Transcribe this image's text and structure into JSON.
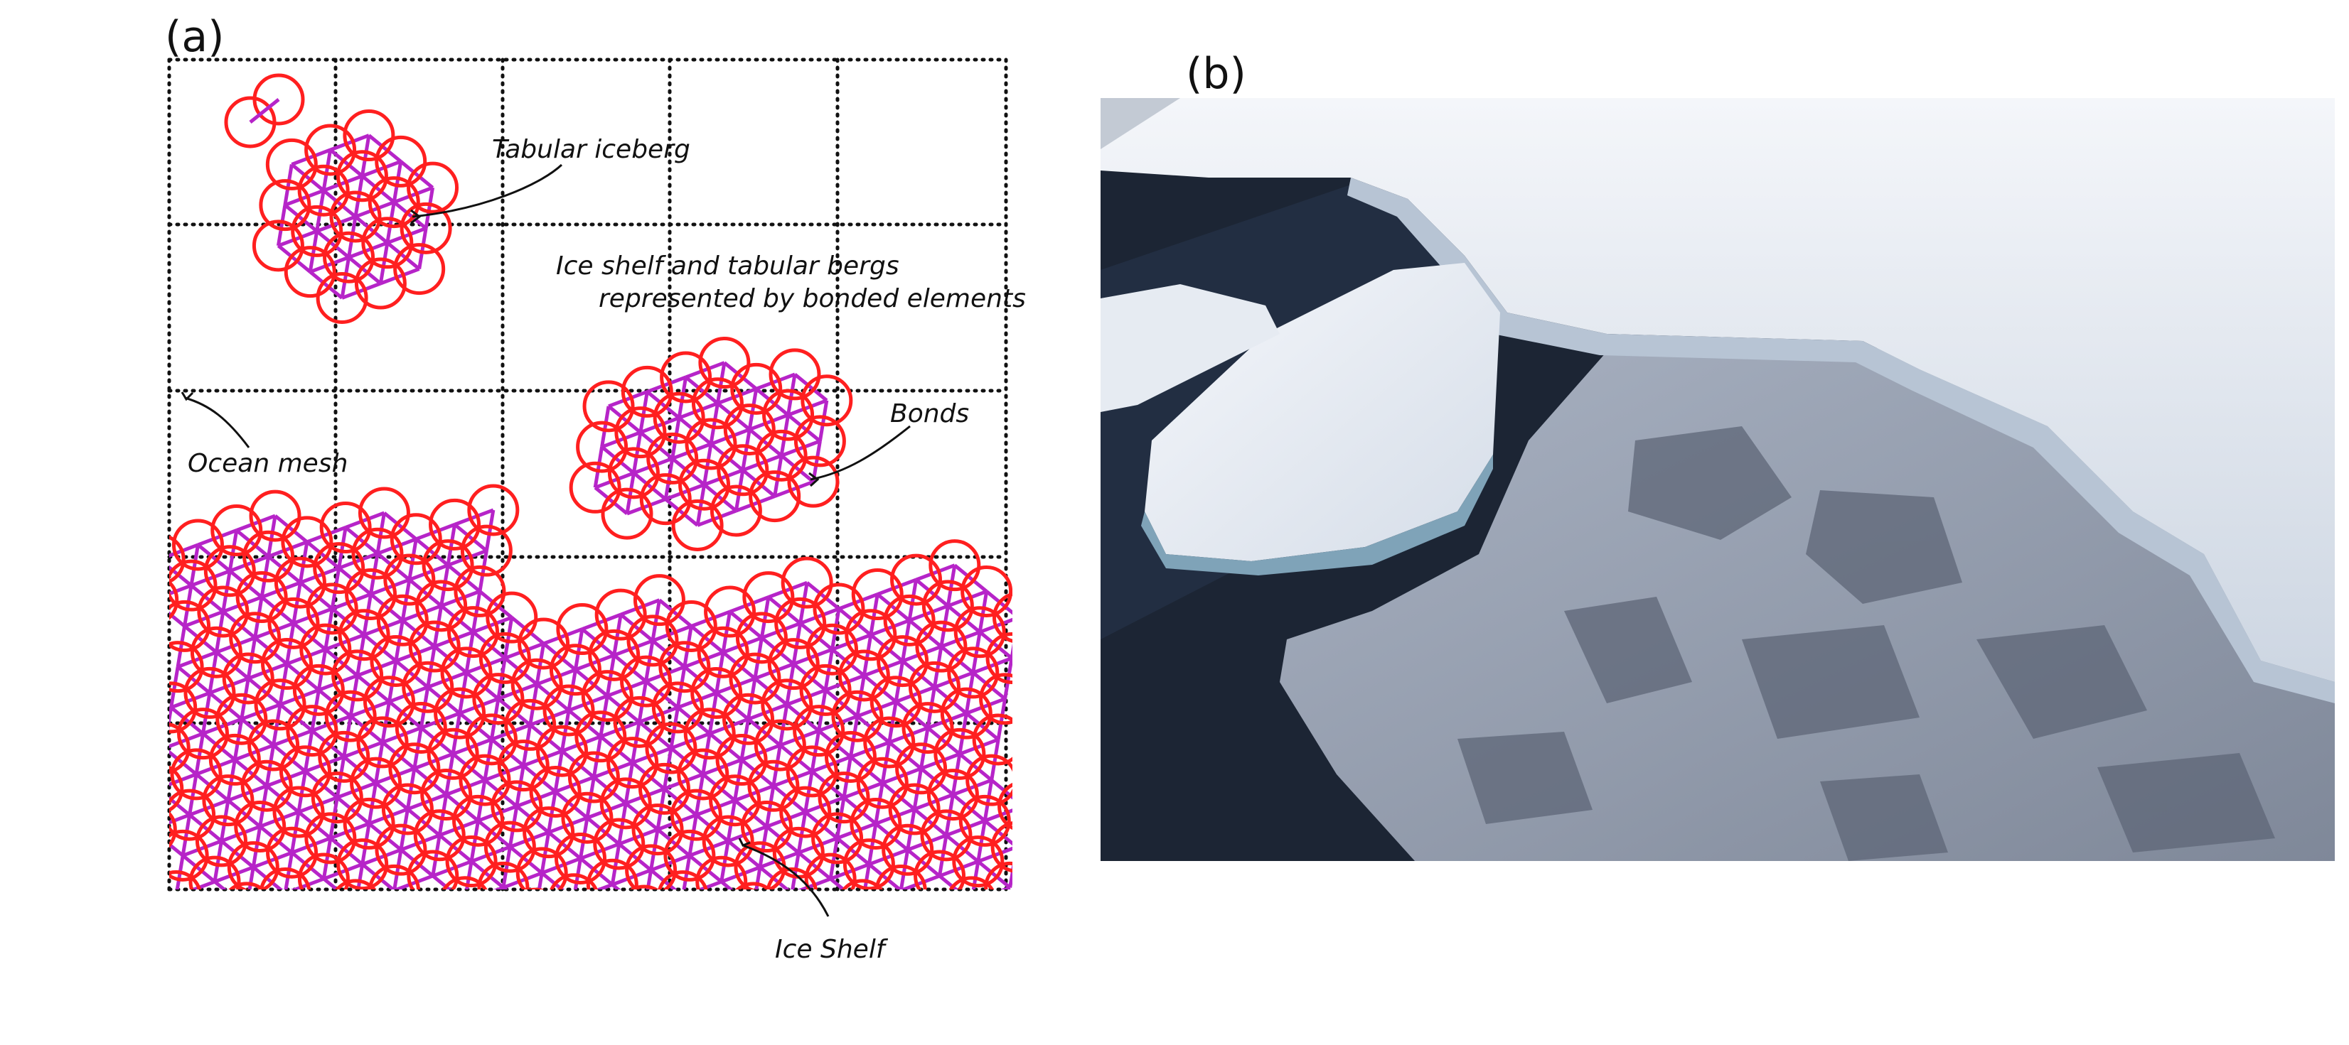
{
  "figure": {
    "panel_a": {
      "label": "(a)",
      "annotations": {
        "tabular_iceberg": "Tabular iceberg",
        "description_line1": "Ice shelf and tabular bergs",
        "description_line2": "represented by bonded elements",
        "bonds": "Bonds",
        "ocean_mesh": "Ocean mesh",
        "ice_shelf": "Ice Shelf"
      }
    },
    "panel_b": {
      "label": "(b)"
    }
  },
  "colors": {
    "element_circle": "#ff1f1f",
    "bond": "#b624c8",
    "mesh": "#111111",
    "ocean_dark": "#1b2433",
    "ice": "#e8edf3",
    "sea_ice": "#8d97a8"
  }
}
